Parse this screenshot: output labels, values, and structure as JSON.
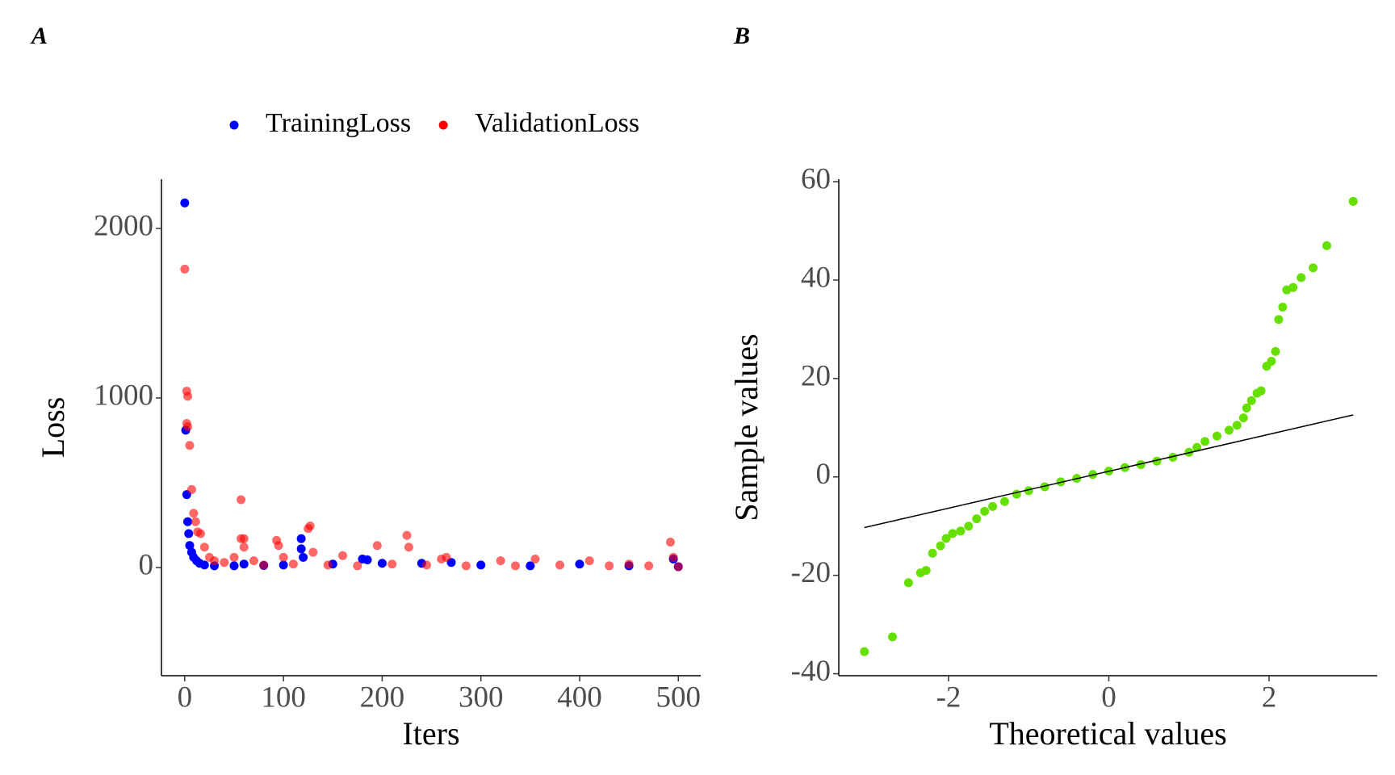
{
  "chart_data": [
    {
      "type": "scatter",
      "panel_label": "A",
      "x_label": "Iters",
      "y_label": "Loss",
      "xlim": [
        -23.6,
        522.7
      ],
      "xticks": [
        0,
        100,
        200,
        300,
        400,
        500
      ],
      "ylim": [
        -638,
        2290
      ],
      "yticks": [
        0,
        1000,
        2000
      ],
      "legend": "top",
      "series": [
        {
          "name": "TrainingLoss",
          "color": "#0000ff",
          "alpha": 1,
          "x": [
            0,
            1,
            2,
            3,
            4,
            5,
            7,
            9,
            12,
            15,
            20,
            30,
            50,
            60,
            80,
            100,
            118,
            118,
            120,
            150,
            180,
            185,
            200,
            240,
            270,
            300,
            350,
            400,
            450,
            495,
            500
          ],
          "values": [
            2150,
            810,
            430,
            270,
            200,
            130,
            90,
            60,
            40,
            25,
            15,
            10,
            10,
            20,
            12,
            15,
            170,
            110,
            60,
            20,
            50,
            45,
            25,
            25,
            30,
            15,
            10,
            20,
            10,
            50,
            5
          ]
        },
        {
          "name": "ValidationLoss",
          "color": "#ff0000",
          "alpha": 0.6,
          "x": [
            0,
            2,
            3,
            2,
            3,
            5,
            7,
            9,
            11,
            13,
            16,
            20,
            25,
            30,
            40,
            50,
            57,
            57,
            60,
            60,
            70,
            93,
            95,
            100,
            125,
            127,
            130,
            160,
            195,
            225,
            227,
            260,
            265,
            320,
            355,
            410,
            450,
            492,
            495,
            500,
            80,
            110,
            145,
            175,
            210,
            245,
            285,
            335,
            380,
            430,
            470
          ],
          "values": [
            1760,
            1040,
            1010,
            850,
            830,
            720,
            460,
            320,
            270,
            210,
            200,
            120,
            60,
            40,
            30,
            60,
            400,
            170,
            170,
            120,
            40,
            160,
            130,
            60,
            230,
            245,
            90,
            70,
            130,
            190,
            120,
            50,
            60,
            40,
            50,
            40,
            20,
            150,
            60,
            5,
            15,
            20,
            15,
            10,
            20,
            15,
            10,
            10,
            15,
            10,
            10
          ]
        }
      ]
    },
    {
      "type": "scatter",
      "panel_label": "B",
      "x_label": "Theoretical values",
      "y_label": "Sample values",
      "xlim": [
        -3.37,
        3.35
      ],
      "xticks": [
        -2,
        0,
        2
      ],
      "ylim": [
        -40.4,
        60.5
      ],
      "yticks": [
        -40,
        -20,
        0,
        20,
        40,
        60
      ],
      "series": [
        {
          "color": "#66e000",
          "alpha": 1,
          "x": [
            -3.05,
            -2.7,
            -2.5,
            -2.35,
            -2.28,
            -2.2,
            -2.1,
            -2.03,
            -1.95,
            -1.85,
            -1.75,
            -1.65,
            -1.55,
            -1.45,
            -1.3,
            -1.15,
            -1.0,
            -0.8,
            -0.6,
            -0.4,
            -0.2,
            0,
            0.2,
            0.4,
            0.6,
            0.8,
            1.0,
            1.1,
            1.2,
            1.35,
            1.5,
            1.6,
            1.68,
            1.72,
            1.78,
            1.85,
            1.9,
            1.97,
            2.03,
            2.08,
            2.12,
            2.17,
            2.22,
            2.3,
            2.4,
            2.55,
            2.72,
            3.05
          ],
          "values": [
            -35.5,
            -32.5,
            -21.5,
            -19.5,
            -19,
            -15.5,
            -14,
            -12.5,
            -11.5,
            -11,
            -10,
            -8.5,
            -7,
            -6,
            -5,
            -3.5,
            -2.8,
            -2,
            -1,
            -0.3,
            0.5,
            1.2,
            1.9,
            2.5,
            3.2,
            4,
            5,
            6,
            7.2,
            8.3,
            9.5,
            10.5,
            12,
            14,
            15.5,
            17,
            17.5,
            22.5,
            23.5,
            25.5,
            32,
            34.5,
            38,
            38.5,
            40.5,
            42.5,
            47,
            56
          ]
        }
      ],
      "reference_line": {
        "color": "#000000",
        "x": [
          -3.05,
          3.05
        ],
        "y": [
          -10.3,
          12.6
        ]
      }
    }
  ]
}
